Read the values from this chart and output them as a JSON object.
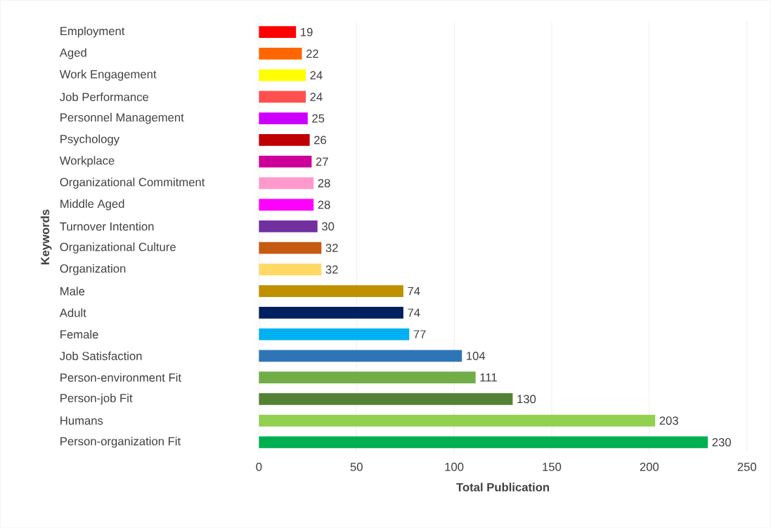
{
  "chart_data": {
    "type": "bar",
    "orientation": "horizontal",
    "xlabel": "Total Publication",
    "ylabel": "Keywords",
    "categories": [
      "Employment",
      "Aged",
      "Work Engagement",
      "Job Performance",
      "Personnel Management",
      "Psychology",
      "Workplace",
      "Organizational Commitment",
      "Middle Aged",
      "Turnover Intention",
      "Organizational Culture",
      "Organization",
      "Male",
      "Adult",
      "Female",
      "Job Satisfaction",
      "Person-environment Fit",
      "Person-job Fit",
      "Humans",
      "Person-organization Fit"
    ],
    "values": [
      19,
      22,
      24,
      24,
      25,
      26,
      27,
      28,
      28,
      30,
      32,
      32,
      74,
      74,
      77,
      104,
      111,
      130,
      203,
      230
    ],
    "colors": [
      "#ff0000",
      "#ff6600",
      "#ffff00",
      "#ff5050",
      "#cc00ff",
      "#c00000",
      "#cc0099",
      "#ff99cc",
      "#ff00ff",
      "#7030a0",
      "#c55a11",
      "#ffd966",
      "#bf9000",
      "#002060",
      "#00b0f0",
      "#2e75b6",
      "#70ad47",
      "#548235",
      "#92d050",
      "#00b050"
    ],
    "data_labels": true,
    "grid": "x",
    "xlim": [
      0,
      250
    ],
    "xticks": [
      0,
      50,
      100,
      150,
      200,
      250
    ]
  }
}
